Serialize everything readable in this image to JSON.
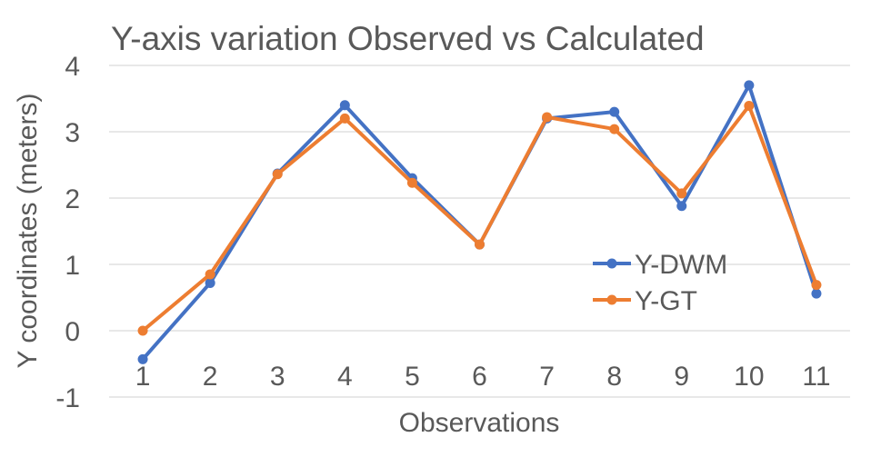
{
  "chart_data": {
    "type": "line",
    "title": "Y-axis variation Observed vs Calculated",
    "xlabel": "Observations",
    "ylabel": "Y coordinates (meters)",
    "categories": [
      "1",
      "2",
      "3",
      "4",
      "5",
      "6",
      "7",
      "8",
      "9",
      "10",
      "11"
    ],
    "ylim": [
      -1,
      4
    ],
    "yticks": [
      "-1",
      "0",
      "1",
      "2",
      "3",
      "4"
    ],
    "grid": true,
    "legend_position": "right",
    "series": [
      {
        "name": "Y-DWM",
        "color": "#4472C4",
        "values": [
          -0.43,
          0.72,
          2.37,
          3.4,
          2.3,
          1.3,
          3.2,
          3.3,
          1.88,
          3.7,
          0.56
        ]
      },
      {
        "name": "Y-GT",
        "color": "#ED7D31",
        "values": [
          0.0,
          0.85,
          2.36,
          3.2,
          2.23,
          1.3,
          3.22,
          3.04,
          2.07,
          3.39,
          0.69
        ]
      }
    ]
  }
}
